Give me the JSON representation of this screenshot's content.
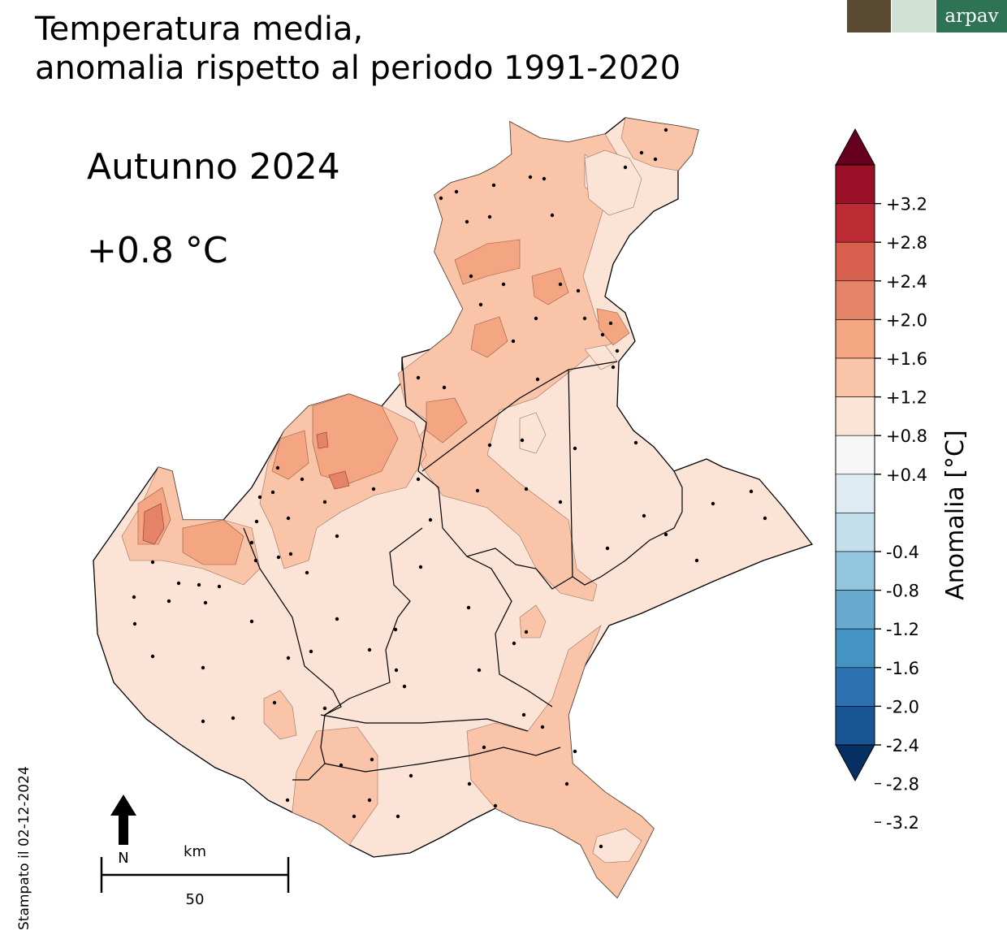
{
  "title": {
    "line1": "Temperatura media,",
    "line2": "anomalia rispetto al periodo 1991-2020"
  },
  "season": "Autunno 2024",
  "mean_anomaly": "+0.8 °C",
  "printed_date": "Stampato il 02-12-2024",
  "logos": {
    "arpav": "arpav",
    "lion": "lion-of-saint-mark-logo",
    "region": "regione-veneto-logo"
  },
  "north_arrow_label": "N",
  "scale_bar": {
    "unit": "km",
    "length_label": "50"
  },
  "colorbar": {
    "label": "Anomalia [°C]",
    "ticks": [
      "+3.2",
      "+2.8",
      "+2.4",
      "+2.0",
      "+1.6",
      "+1.2",
      "+0.8",
      "+0.4",
      "-0.4",
      "-0.8",
      "-1.2",
      "-1.6",
      "-2.0",
      "-2.4",
      "-2.8",
      "-3.2"
    ],
    "colors": [
      "#67001f",
      "#9b1027",
      "#bc2a33",
      "#d6604d",
      "#e58368",
      "#f4a582",
      "#f9c4a8",
      "#fbe3d6",
      "#f7f7f7",
      "#deebf3",
      "#c4dfec",
      "#92c5de",
      "#67a9cf",
      "#4393c3",
      "#2c72b2",
      "#195494",
      "#053061"
    ]
  }
}
